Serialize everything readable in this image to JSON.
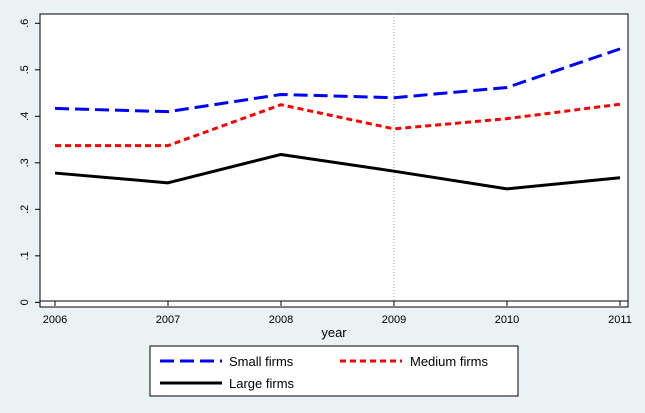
{
  "chart_data": {
    "type": "line",
    "title": "",
    "xlabel": "year",
    "ylabel": "",
    "x": [
      2006,
      2007,
      2008,
      2009,
      2010,
      2011
    ],
    "xticks": [
      "2006",
      "2007",
      "2008",
      "2009",
      "2010",
      "2011"
    ],
    "yticks": [
      {
        "value": 0,
        "label": "0"
      },
      {
        "value": 0.1,
        "label": ".1"
      },
      {
        "value": 0.2,
        "label": ".2"
      },
      {
        "value": 0.3,
        "label": ".3"
      },
      {
        "value": 0.4,
        "label": ".4"
      },
      {
        "value": 0.5,
        "label": ".5"
      },
      {
        "value": 0.6,
        "label": ".6"
      }
    ],
    "xlim": [
      2006,
      2011
    ],
    "ylim": [
      -0.01,
      0.62
    ],
    "reference_line_x": 2009,
    "grid": false,
    "legend_position": "bottom",
    "series": [
      {
        "name": "Small firms",
        "color": "#0000ff",
        "dash": "long-dash",
        "values": [
          0.417,
          0.41,
          0.447,
          0.44,
          0.462,
          0.545
        ]
      },
      {
        "name": "Medium firms",
        "color": "#ff0000",
        "dash": "short-dash",
        "values": [
          0.337,
          0.337,
          0.425,
          0.373,
          0.395,
          0.426
        ]
      },
      {
        "name": "Large firms",
        "color": "#000000",
        "dash": "solid",
        "values": [
          0.278,
          0.257,
          0.318,
          0.282,
          0.244,
          0.268
        ]
      }
    ]
  }
}
